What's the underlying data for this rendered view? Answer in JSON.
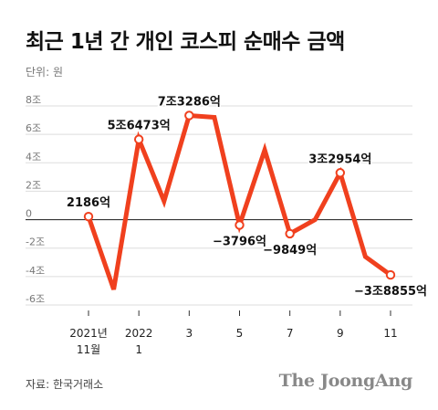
{
  "title": "최근 1년 간 개인 코스피 순매수 금액",
  "unit_label": "단위: 원",
  "source": "자료: 한국거래소",
  "brand": "The JoongAng",
  "colors": {
    "line": "#f0401e",
    "grid": "#dddddd",
    "zero": "#333333",
    "label": "#777777",
    "marker_fill": "#ffffff"
  },
  "chart_data": {
    "type": "line",
    "title": "최근 1년 간 개인 코스피 순매수 금액",
    "ylabel": "단위: 원",
    "ylim": [
      -6,
      8
    ],
    "yticks": [
      {
        "value": 8,
        "label": "8조"
      },
      {
        "value": 6,
        "label": "6조"
      },
      {
        "value": 4,
        "label": "4조"
      },
      {
        "value": 2,
        "label": "2조"
      },
      {
        "value": 0,
        "label": "0"
      },
      {
        "value": -2,
        "label": "-2조"
      },
      {
        "value": -4,
        "label": "-4조"
      },
      {
        "value": -6,
        "label": "-6조"
      }
    ],
    "grid": true,
    "x": [
      "2021-11",
      "2021-12",
      "2022-01",
      "2022-02",
      "2022-03",
      "2022-04",
      "2022-05",
      "2022-06",
      "2022-07",
      "2022-08",
      "2022-09",
      "2022-10",
      "2022-11"
    ],
    "xticks": [
      {
        "index": 0,
        "line1": "2021년",
        "line2": "11월"
      },
      {
        "index": 2,
        "line1": "2022",
        "line2": "1"
      },
      {
        "index": 4,
        "line1": "3",
        "line2": ""
      },
      {
        "index": 6,
        "line1": "5",
        "line2": ""
      },
      {
        "index": 8,
        "line1": "7",
        "line2": ""
      },
      {
        "index": 10,
        "line1": "9",
        "line2": ""
      },
      {
        "index": 12,
        "line1": "11",
        "line2": ""
      }
    ],
    "series": [
      {
        "values": [
          0.2186,
          -4.9,
          5.6473,
          1.3,
          7.3286,
          7.2,
          -0.3796,
          4.9,
          -0.9849,
          0.0,
          3.2954,
          -2.6,
          -3.8855
        ]
      }
    ],
    "annotations": [
      {
        "index": 0,
        "label": "2186억",
        "pos": "above"
      },
      {
        "index": 2,
        "label": "5조6473억",
        "pos": "above"
      },
      {
        "index": 4,
        "label": "7조3286억",
        "pos": "above"
      },
      {
        "index": 6,
        "label": "−3796억",
        "pos": "below"
      },
      {
        "index": 8,
        "label": "−9849억",
        "pos": "below"
      },
      {
        "index": 10,
        "label": "3조2954억",
        "pos": "above"
      },
      {
        "index": 12,
        "label": "−3조8855억",
        "pos": "below"
      }
    ]
  }
}
